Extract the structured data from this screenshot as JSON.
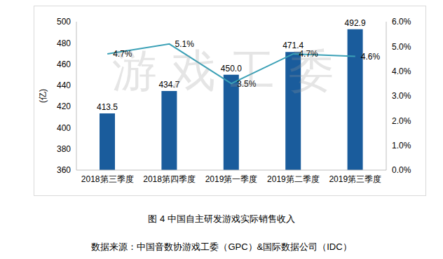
{
  "chart_data": {
    "type": "bar",
    "title": "图 4 中国自主研发游戏实际销售收入",
    "subtitle": "数据来源：中国音数协游戏工委（GPC）&国际数据公司（IDC）",
    "annotations": [
      "游戏工委"
    ],
    "y_label": "(亿)",
    "categories": [
      "2018第三季度",
      "2018第四季度",
      "2019第一季度",
      "2019第二季度",
      "2019第三季度"
    ],
    "series": [
      {
        "type": "bar",
        "color": "#1a5c9c",
        "values": [
          413.5,
          434.7,
          450.0,
          471.4,
          492.9
        ],
        "value_labels": [
          "413.5",
          "434.7",
          "450.0",
          "471.4",
          "492.9"
        ]
      },
      {
        "type": "line",
        "axis": "y2",
        "color": "#3aa0b6",
        "marker": "none",
        "line_style": "solid",
        "values": [
          4.7,
          5.1,
          3.5,
          4.7,
          4.6
        ],
        "value_labels": [
          "4.7%",
          "5.1%",
          "3.5%",
          "4.7%",
          "4.6%"
        ]
      }
    ],
    "ylim": [
      360,
      500
    ],
    "yticks": [
      360,
      380,
      400,
      420,
      440,
      460,
      480,
      500
    ],
    "y2lim": [
      0,
      6
    ],
    "y2ticks": [
      {
        "value": 0,
        "label": "0.0%"
      },
      {
        "value": 1,
        "label": "1.0%"
      },
      {
        "value": 2,
        "label": "2.0%"
      },
      {
        "value": 3,
        "label": "3.0%"
      },
      {
        "value": 4,
        "label": "4.0%"
      },
      {
        "value": 5,
        "label": "5.0%"
      },
      {
        "value": 6,
        "label": "6.0%"
      }
    ],
    "grid": false,
    "data_labels": true
  }
}
